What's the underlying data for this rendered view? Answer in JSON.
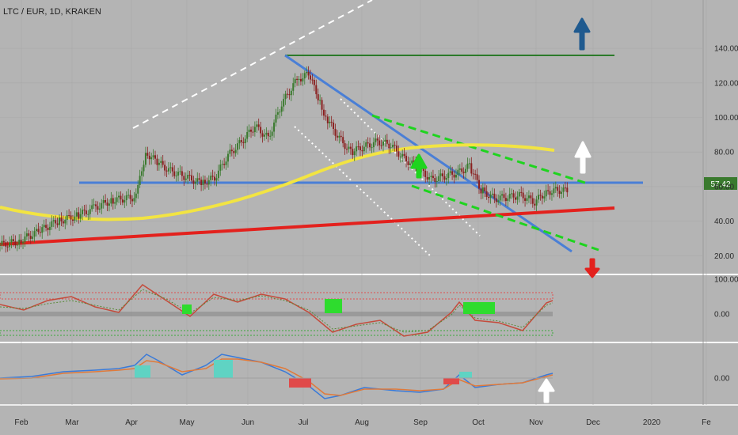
{
  "header": {
    "symbol_title": "LTC / EUR, 1D, KRAKEN"
  },
  "chart_data": {
    "type": "candlestick",
    "title": "LTC / EUR, 1D, KRAKEN",
    "pair": "LTC / EUR",
    "interval": "1D",
    "exchange": "KRAKEN",
    "last_price": "57.42",
    "x_ticks": [
      "Feb",
      "Mar",
      "Apr",
      "May",
      "Jun",
      "Jul",
      "Aug",
      "Sep",
      "Oct",
      "Nov",
      "Dec",
      "2020",
      "Fe"
    ],
    "price_axis": {
      "ticks": [
        "140.00",
        "120.00",
        "100.00",
        "80.00",
        "60.00",
        "40.00",
        "20.00"
      ],
      "ylim": [
        10,
        150
      ]
    },
    "oscillator_axis": {
      "ticks": [
        "100.00",
        "0.00"
      ]
    },
    "macd_axis": {
      "ticks": [
        "0.00"
      ]
    },
    "price_path": [
      [
        "2019-01-15",
        26
      ],
      [
        "2019-01-25",
        28
      ],
      [
        "2019-02-05",
        34
      ],
      [
        "2019-02-15",
        40
      ],
      [
        "2019-02-25",
        43
      ],
      [
        "2019-03-05",
        47
      ],
      [
        "2019-03-15",
        52
      ],
      [
        "2019-03-28",
        54
      ],
      [
        "2019-04-02",
        80
      ],
      [
        "2019-04-08",
        74
      ],
      [
        "2019-04-15",
        69
      ],
      [
        "2019-04-22",
        66
      ],
      [
        "2019-05-01",
        62
      ],
      [
        "2019-05-08",
        65
      ],
      [
        "2019-05-15",
        78
      ],
      [
        "2019-05-22",
        86
      ],
      [
        "2019-05-29",
        95
      ],
      [
        "2019-06-05",
        88
      ],
      [
        "2019-06-12",
        108
      ],
      [
        "2019-06-20",
        122
      ],
      [
        "2019-06-26",
        125
      ],
      [
        "2019-07-01",
        112
      ],
      [
        "2019-07-05",
        100
      ],
      [
        "2019-07-12",
        88
      ],
      [
        "2019-07-18",
        80
      ],
      [
        "2019-07-25",
        83
      ],
      [
        "2019-08-01",
        86
      ],
      [
        "2019-08-08",
        84
      ],
      [
        "2019-08-15",
        76
      ],
      [
        "2019-08-22",
        71
      ],
      [
        "2019-08-29",
        64
      ],
      [
        "2019-09-05",
        66
      ],
      [
        "2019-09-12",
        68
      ],
      [
        "2019-09-18",
        72
      ],
      [
        "2019-09-24",
        58
      ],
      [
        "2019-10-01",
        53
      ],
      [
        "2019-10-08",
        54
      ],
      [
        "2019-10-15",
        55
      ],
      [
        "2019-10-22",
        51
      ],
      [
        "2019-10-28",
        57
      ],
      [
        "2019-11-04",
        58
      ],
      [
        "2019-11-08",
        57.42
      ]
    ],
    "annotations": {
      "horizontal_support": 58,
      "horizontal_resistance": 128,
      "rising_support_start": [
        "2019-01-01",
        25
      ],
      "rising_support_end": [
        "2019-12-01",
        45
      ],
      "moving_average": "yellow",
      "arrows": [
        "up-blue",
        "up-white",
        "up-green",
        "down-red",
        "up-white-macd"
      ]
    },
    "colors": {
      "background": "#b4b4b4",
      "bull_candle": "#3a7a2e",
      "bear_candle": "#8a2020",
      "support_line": "#4a7fd6",
      "trend_red": "#e3211d",
      "ma_yellow": "#f2e442",
      "green_channel": "#1ed41e",
      "resistance_green": "#2c7a2a",
      "arrow_blue": "#1f5a8f"
    }
  }
}
